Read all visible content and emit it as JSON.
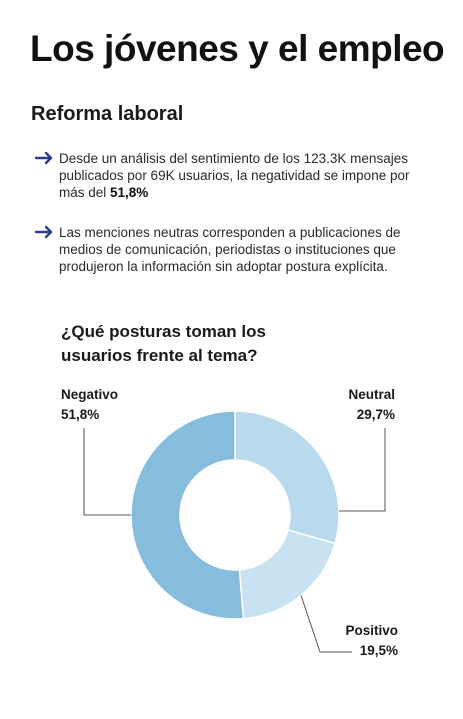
{
  "header": {
    "title": "Los jóvenes y el empleo",
    "subtitle": "Reforma laboral"
  },
  "bullets": [
    {
      "text": "Desde un análisis del sentimiento de los 123.3K mensajes publicados por 69K usuarios, la negatividad se impone por más del ",
      "bold": "51,8%"
    },
    {
      "text": "Las menciones neutras corresponden a publicaciones de medios de comunicación, periodistas o instituciones que produjeron la información sin adoptar postura explícita.",
      "bold": ""
    }
  ],
  "question": "¿Qué posturas toman los usuarios frente al tema?",
  "colors": {
    "arrow": "#2b3f8c",
    "negativo": "#86bcdc",
    "neutral": "#b9d9ec",
    "positivo": "#c8e2f2"
  },
  "chart_data": {
    "type": "pie",
    "style": "donut",
    "slices": [
      {
        "name": "Neutral",
        "value": 29.7,
        "label": "29,7%"
      },
      {
        "name": "Positivo",
        "value": 19.5,
        "label": "19,5%"
      },
      {
        "name": "Negativo",
        "value": 51.8,
        "label": "51,8%"
      }
    ]
  }
}
